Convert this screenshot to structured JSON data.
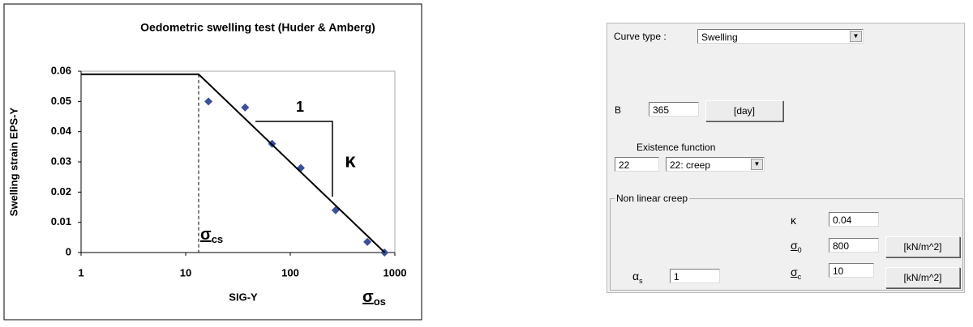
{
  "chart_data": {
    "type": "scatter",
    "title": "Oedometric swelling test (Huder & Amberg)",
    "x_label": "SIG-Y",
    "y_label": "Swelling strain EPS-Y",
    "xscale": "log",
    "xlim": [
      1,
      1000
    ],
    "xticks": [
      1,
      10,
      100,
      1000
    ],
    "ylim": [
      0,
      0.06
    ],
    "yticks": [
      0,
      0.01,
      0.02,
      0.03,
      0.04,
      0.05,
      0.06
    ],
    "grid": false,
    "series": [
      {
        "type": "scatter",
        "color": "#3a4f9e",
        "x": [
          16.5,
          37,
          67,
          126,
          271,
          546,
          796
        ],
        "values": [
          0.05,
          0.048,
          0.036,
          0.028,
          0.014,
          0.0035,
          0
        ]
      },
      {
        "type": "line",
        "color": "#000000",
        "x": [
          1,
          13.3,
          800
        ],
        "values": [
          0.059,
          0.059,
          0
        ]
      }
    ],
    "annotations": {
      "slope_run": "1",
      "slope_rise": "κ",
      "sigma_cs": {
        "symbol": "σ",
        "subscript": "cs"
      },
      "sigma_os": {
        "symbol": "σ",
        "subscript": "os"
      }
    }
  },
  "form": {
    "curve_type": {
      "label": "Curve type :",
      "value": "Swelling"
    },
    "B": {
      "label": "B",
      "value": "365",
      "unit": "[day]"
    },
    "existence": {
      "label": "Existence function",
      "value": "22",
      "option": "22: creep"
    },
    "group": {
      "title": "Non linear creep",
      "kappa": {
        "symbol": "κ",
        "value": "0.04"
      },
      "sigma0": {
        "symbol": "σ",
        "subscript": "0",
        "value": "800",
        "unit": "[kN/m^2]"
      },
      "alpha_s": {
        "symbol": "α",
        "subscript": "s",
        "value": "1"
      },
      "sigma_c": {
        "symbol": "σ",
        "subscript": "c",
        "value": "10",
        "unit": "[kN/m^2]"
      }
    }
  }
}
